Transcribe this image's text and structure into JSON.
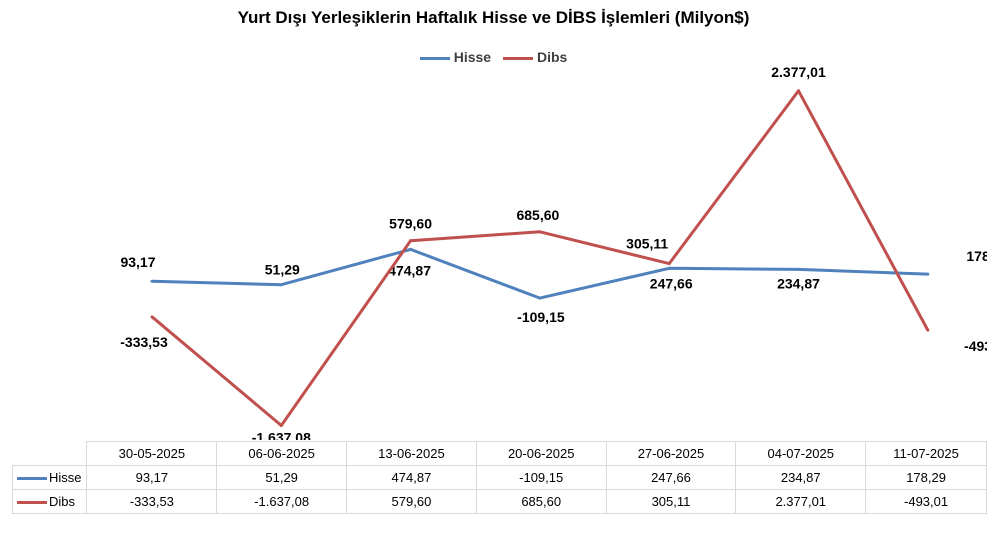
{
  "chart_data": {
    "type": "line",
    "title": "Yurt Dışı Yerleşiklerin Haftalık Hisse ve DİBS İşlemleri (Milyon$)",
    "categories": [
      "30-05-2025",
      "06-06-2025",
      "13-06-2025",
      "20-06-2025",
      "27-06-2025",
      "04-07-2025",
      "11-07-2025"
    ],
    "series": [
      {
        "name": "Hisse",
        "color": "#4f81bd",
        "values": [
          93.17,
          51.29,
          474.87,
          -109.15,
          247.66,
          234.87,
          178.29
        ],
        "labels": [
          "93,17",
          "51,29",
          "474,87",
          "-109,15",
          "247,66",
          "234,87",
          "178,29"
        ]
      },
      {
        "name": "Dibs",
        "color": "#c0504d",
        "values": [
          -333.53,
          -1637.08,
          579.6,
          685.6,
          305.11,
          2377.01,
          -493.01
        ],
        "labels": [
          "-333,53",
          "-1.637,08",
          "579,60",
          "685,60",
          "305,11",
          "2.377,01",
          "-493,01"
        ]
      }
    ],
    "grid": false,
    "legend_position": "top",
    "data_table": true
  }
}
